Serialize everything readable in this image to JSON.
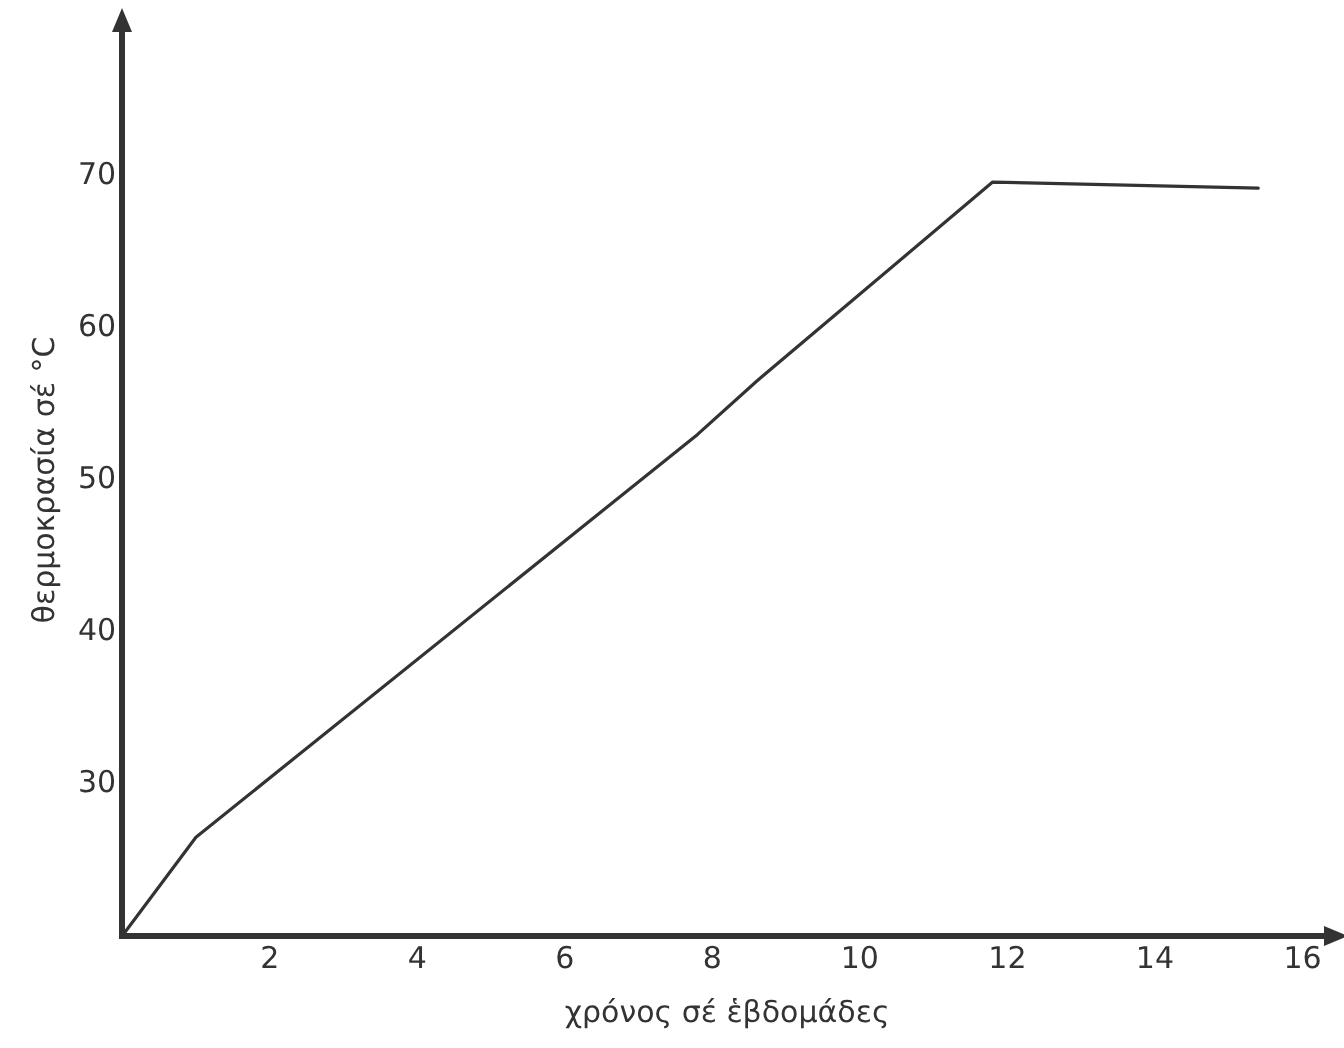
{
  "chart_data": {
    "type": "line",
    "xlabel": "χρόνος σέ ἑβδομάδες",
    "ylabel": "θερμοκρασία σέ °C",
    "x": [
      0,
      1,
      7.8,
      8.6,
      11.8,
      15.4
    ],
    "series": [
      {
        "color": "#333333",
        "values": [
          20,
          26.5,
          53,
          56.5,
          69.6,
          69.2
        ]
      }
    ],
    "xlim": [
      0,
      16.4
    ],
    "xticks": [
      2,
      4,
      6,
      8,
      10,
      12,
      14,
      16
    ],
    "ylim": [
      20,
      80
    ],
    "yticks": [
      30,
      40,
      50,
      60,
      70
    ],
    "grid": false,
    "legend": false,
    "marker": "none",
    "line_style": "solid"
  }
}
